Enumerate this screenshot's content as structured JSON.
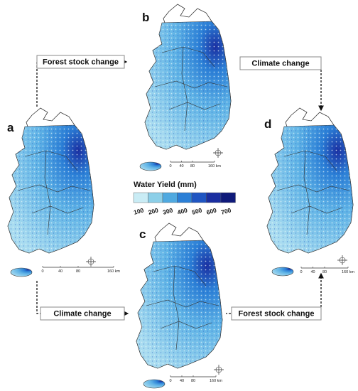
{
  "legend": {
    "title": "Water Yield (mm)",
    "labels": [
      "100",
      "200",
      "300",
      "400",
      "500",
      "600",
      "700"
    ]
  },
  "arrows": [
    {
      "label": "Forest stock change"
    },
    {
      "label": "Climate change"
    },
    {
      "label": "Climate change"
    },
    {
      "label": "Forest stock change"
    }
  ],
  "maps": [
    {
      "label": "a",
      "scale_labels": [
        "0",
        "40",
        "80",
        "160 km"
      ]
    },
    {
      "label": "b",
      "scale_labels": [
        "0",
        "40",
        "80",
        "160 km"
      ]
    },
    {
      "label": "c",
      "scale_labels": [
        "0",
        "40",
        "80",
        "160 km"
      ]
    },
    {
      "label": "d",
      "scale_labels": [
        "0",
        "40",
        "80",
        "160 km"
      ]
    }
  ]
}
